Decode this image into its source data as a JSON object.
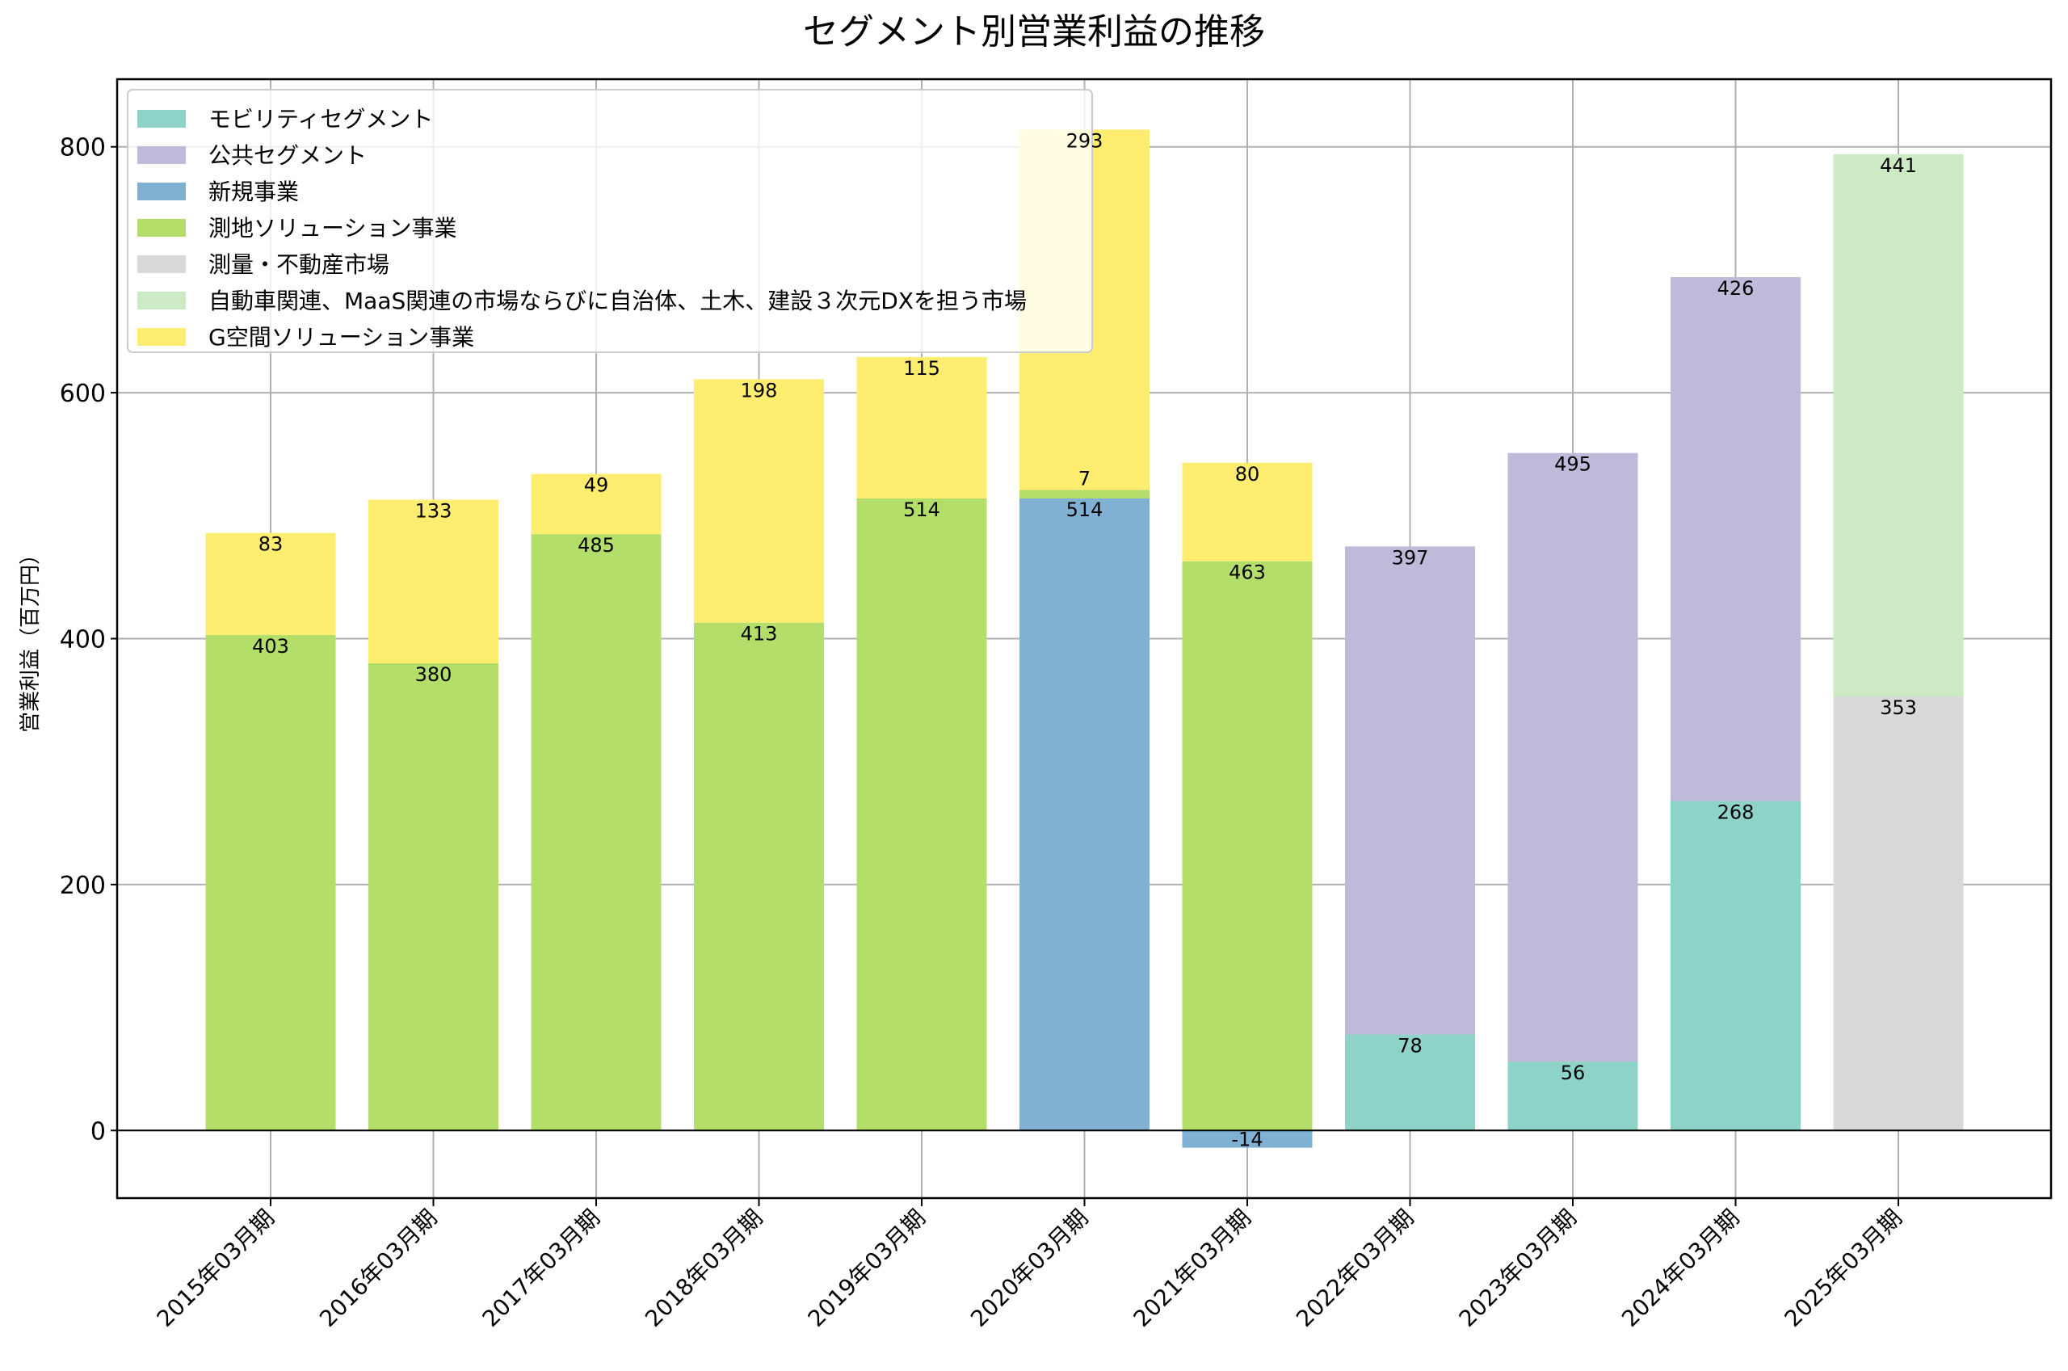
{
  "chart_data": {
    "type": "bar",
    "stacked": true,
    "title": "セグメント別営業利益の推移",
    "xlabel": "",
    "ylabel": "営業利益（百万円）",
    "ylim": [
      -55,
      855
    ],
    "yticks": [
      0,
      200,
      400,
      600,
      800
    ],
    "grid": true,
    "legend_position": "top-left",
    "categories": [
      "2015年03月期",
      "2016年03月期",
      "2017年03月期",
      "2018年03月期",
      "2019年03月期",
      "2020年03月期",
      "2021年03月期",
      "2022年03月期",
      "2023年03月期",
      "2024年03月期",
      "2025年03月期"
    ],
    "series": [
      {
        "name": "モビリティセグメント",
        "color": "#8dd3c7",
        "values": [
          null,
          null,
          null,
          null,
          null,
          null,
          null,
          78,
          56,
          268,
          null
        ]
      },
      {
        "name": "公共セグメント",
        "color": "#bebada",
        "values": [
          null,
          null,
          null,
          null,
          null,
          null,
          null,
          397,
          495,
          426,
          null
        ]
      },
      {
        "name": "新規事業",
        "color": "#80b1d3",
        "values": [
          null,
          null,
          null,
          null,
          null,
          514,
          -14,
          null,
          null,
          null,
          null
        ]
      },
      {
        "name": "測地ソリューション事業",
        "color": "#b3de69",
        "values": [
          403,
          380,
          485,
          413,
          514,
          7,
          463,
          null,
          null,
          null,
          null
        ]
      },
      {
        "name": "測量・不動産市場",
        "color": "#d9d9d9",
        "values": [
          null,
          null,
          null,
          null,
          null,
          null,
          null,
          null,
          null,
          null,
          353
        ]
      },
      {
        "name": "自動車関連、MaaS関連の市場ならびに自治体、土木、建設３次元DXを担う市場",
        "color": "#ccebc5",
        "values": [
          null,
          null,
          null,
          null,
          null,
          null,
          null,
          null,
          null,
          null,
          441
        ]
      },
      {
        "name": "G空間ソリューション事業",
        "color": "#ffed6f",
        "values": [
          83,
          133,
          49,
          198,
          115,
          293,
          80,
          null,
          null,
          null,
          null
        ]
      }
    ]
  }
}
